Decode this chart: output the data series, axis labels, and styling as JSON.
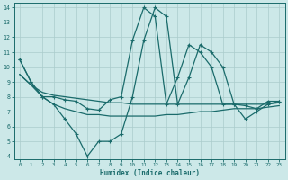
{
  "xlabel": "Humidex (Indice chaleur)",
  "background_color": "#cce8e8",
  "grid_color": "#aacccc",
  "line_color": "#1a6b6b",
  "xlim": [
    -0.5,
    23.5
  ],
  "ylim": [
    3.8,
    14.3
  ],
  "yticks": [
    4,
    5,
    6,
    7,
    8,
    9,
    10,
    11,
    12,
    13,
    14
  ],
  "xticks": [
    0,
    1,
    2,
    3,
    4,
    5,
    6,
    7,
    8,
    9,
    10,
    11,
    12,
    13,
    14,
    15,
    16,
    17,
    18,
    19,
    20,
    21,
    22,
    23
  ],
  "series": [
    {
      "x": [
        0,
        1,
        2,
        3,
        4,
        5,
        6,
        7,
        8,
        9,
        10,
        11,
        12,
        13,
        14,
        15,
        16,
        17,
        18,
        19,
        20,
        21,
        22,
        23
      ],
      "y": [
        9.5,
        8.8,
        8.3,
        8.1,
        8.0,
        7.9,
        7.8,
        7.7,
        7.6,
        7.6,
        7.5,
        7.5,
        7.5,
        7.5,
        7.5,
        7.5,
        7.5,
        7.5,
        7.5,
        7.5,
        7.5,
        7.5,
        7.5,
        7.6
      ],
      "marker": false,
      "lw": 0.9
    },
    {
      "x": [
        0,
        1,
        2,
        3,
        4,
        5,
        6,
        7,
        8,
        9,
        10,
        11,
        12,
        13,
        14,
        15,
        16,
        17,
        18,
        19,
        20,
        21,
        22,
        23
      ],
      "y": [
        9.5,
        8.8,
        8.0,
        7.5,
        7.2,
        7.0,
        6.8,
        6.8,
        6.7,
        6.7,
        6.7,
        6.7,
        6.7,
        6.8,
        6.8,
        6.9,
        7.0,
        7.0,
        7.1,
        7.2,
        7.2,
        7.2,
        7.3,
        7.4
      ],
      "marker": false,
      "lw": 0.9
    },
    {
      "x": [
        0,
        1,
        2,
        3,
        4,
        5,
        6,
        7,
        8,
        9,
        10,
        11,
        12,
        13,
        14,
        15,
        16,
        17,
        18,
        19,
        20,
        21,
        22,
        23
      ],
      "y": [
        10.5,
        9.0,
        8.0,
        8.0,
        7.8,
        7.7,
        7.2,
        7.1,
        7.8,
        8.0,
        11.8,
        14.0,
        13.4,
        7.5,
        9.3,
        11.5,
        11.0,
        10.0,
        7.5,
        7.5,
        7.4,
        7.2,
        7.7,
        7.7
      ],
      "marker": true,
      "lw": 0.9
    },
    {
      "x": [
        0,
        1,
        2,
        3,
        4,
        5,
        6,
        7,
        8,
        9,
        10,
        11,
        12,
        13,
        14,
        15,
        16,
        17,
        18,
        19,
        20,
        21,
        22,
        23
      ],
      "y": [
        10.5,
        9.0,
        8.0,
        7.5,
        6.5,
        5.5,
        4.0,
        5.0,
        5.0,
        5.5,
        8.0,
        11.8,
        14.0,
        13.4,
        7.5,
        9.3,
        11.5,
        11.0,
        10.0,
        7.5,
        6.5,
        7.0,
        7.5,
        7.7
      ],
      "marker": true,
      "lw": 0.9
    }
  ]
}
